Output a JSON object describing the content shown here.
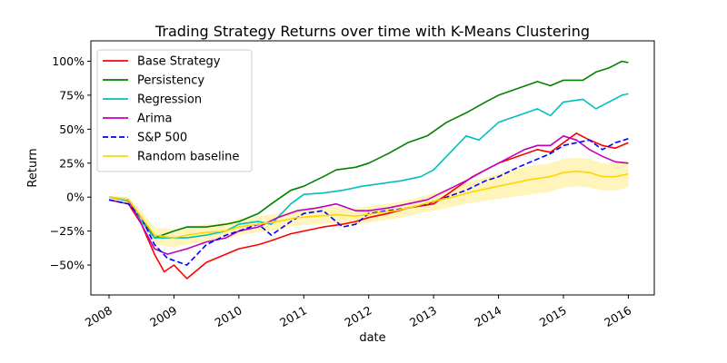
{
  "chart_data": {
    "type": "line",
    "title": "Trading Strategy Returns over time with K-Means Clustering",
    "xlabel": "date",
    "ylabel": "Return",
    "xlim": [
      2007.72,
      2016.4
    ],
    "ylim": [
      -0.72,
      1.15
    ],
    "x_ticks": [
      {
        "value": 2008,
        "label": "2008"
      },
      {
        "value": 2009,
        "label": "2009"
      },
      {
        "value": 2010,
        "label": "2010"
      },
      {
        "value": 2011,
        "label": "2011"
      },
      {
        "value": 2012,
        "label": "2012"
      },
      {
        "value": 2013,
        "label": "2013"
      },
      {
        "value": 2014,
        "label": "2014"
      },
      {
        "value": 2015,
        "label": "2015"
      },
      {
        "value": 2016,
        "label": "2016"
      }
    ],
    "y_ticks": [
      {
        "value": -0.5,
        "label": "−50%"
      },
      {
        "value": -0.25,
        "label": "−25%"
      },
      {
        "value": 0,
        "label": "0%"
      },
      {
        "value": 0.25,
        "label": "25%"
      },
      {
        "value": 0.5,
        "label": "50%"
      },
      {
        "value": 0.75,
        "label": "75%"
      },
      {
        "value": 1.0,
        "label": "100%"
      }
    ],
    "grid": false,
    "legend_position": "top-left",
    "series": [
      {
        "name": "Base Strategy",
        "color": "#ff0000",
        "dash": "solid",
        "x": [
          2008.0,
          2008.3,
          2008.5,
          2008.7,
          2008.85,
          2009.0,
          2009.2,
          2009.5,
          2009.8,
          2010.0,
          2010.3,
          2010.5,
          2010.8,
          2011.0,
          2011.3,
          2011.6,
          2011.8,
          2012.0,
          2012.3,
          2012.6,
          2013.0,
          2013.3,
          2013.6,
          2013.8,
          2014.0,
          2014.3,
          2014.6,
          2014.8,
          2015.0,
          2015.2,
          2015.4,
          2015.6,
          2015.8,
          2016.0
        ],
        "y": [
          -0.02,
          -0.05,
          -0.2,
          -0.42,
          -0.55,
          -0.5,
          -0.6,
          -0.48,
          -0.42,
          -0.38,
          -0.35,
          -0.32,
          -0.27,
          -0.25,
          -0.22,
          -0.2,
          -0.18,
          -0.15,
          -0.12,
          -0.08,
          -0.05,
          0.05,
          0.15,
          0.2,
          0.25,
          0.3,
          0.35,
          0.33,
          0.4,
          0.47,
          0.42,
          0.38,
          0.36,
          0.4
        ]
      },
      {
        "name": "Persistency",
        "color": "#008000",
        "dash": "solid",
        "x": [
          2008.0,
          2008.3,
          2008.5,
          2008.7,
          2009.0,
          2009.2,
          2009.5,
          2009.8,
          2010.0,
          2010.3,
          2010.5,
          2010.8,
          2011.0,
          2011.3,
          2011.5,
          2011.8,
          2012.0,
          2012.3,
          2012.6,
          2012.9,
          2013.2,
          2013.5,
          2013.8,
          2014.0,
          2014.3,
          2014.6,
          2014.8,
          2015.0,
          2015.3,
          2015.5,
          2015.7,
          2015.9,
          2016.0
        ],
        "y": [
          0.0,
          -0.02,
          -0.15,
          -0.3,
          -0.25,
          -0.22,
          -0.22,
          -0.2,
          -0.18,
          -0.12,
          -0.05,
          0.05,
          0.08,
          0.15,
          0.2,
          0.22,
          0.25,
          0.32,
          0.4,
          0.45,
          0.55,
          0.62,
          0.7,
          0.75,
          0.8,
          0.85,
          0.82,
          0.86,
          0.86,
          0.92,
          0.95,
          1.0,
          0.99
        ]
      },
      {
        "name": "Regression",
        "color": "#00bfbf",
        "dash": "solid",
        "x": [
          2008.0,
          2008.3,
          2008.5,
          2008.7,
          2009.0,
          2009.2,
          2009.5,
          2009.8,
          2010.0,
          2010.3,
          2010.5,
          2010.8,
          2011.0,
          2011.3,
          2011.6,
          2011.9,
          2012.2,
          2012.5,
          2012.8,
          2013.0,
          2013.3,
          2013.5,
          2013.7,
          2014.0,
          2014.3,
          2014.6,
          2014.8,
          2015.0,
          2015.3,
          2015.5,
          2015.7,
          2015.9,
          2016.0
        ],
        "y": [
          0.0,
          -0.03,
          -0.18,
          -0.3,
          -0.3,
          -0.3,
          -0.28,
          -0.25,
          -0.2,
          -0.18,
          -0.2,
          -0.05,
          0.02,
          0.03,
          0.05,
          0.08,
          0.1,
          0.12,
          0.15,
          0.2,
          0.35,
          0.45,
          0.42,
          0.55,
          0.6,
          0.65,
          0.6,
          0.7,
          0.72,
          0.65,
          0.7,
          0.75,
          0.76
        ]
      },
      {
        "name": "Arima",
        "color": "#bf00bf",
        "dash": "solid",
        "x": [
          2008.0,
          2008.3,
          2008.5,
          2008.7,
          2008.9,
          2009.2,
          2009.5,
          2009.8,
          2010.0,
          2010.3,
          2010.6,
          2010.9,
          2011.2,
          2011.5,
          2011.8,
          2012.0,
          2012.3,
          2012.6,
          2012.9,
          2013.2,
          2013.5,
          2013.8,
          2014.0,
          2014.2,
          2014.4,
          2014.6,
          2014.8,
          2015.0,
          2015.2,
          2015.4,
          2015.6,
          2015.8,
          2016.0
        ],
        "y": [
          0.0,
          -0.02,
          -0.2,
          -0.38,
          -0.42,
          -0.38,
          -0.33,
          -0.3,
          -0.25,
          -0.22,
          -0.15,
          -0.1,
          -0.08,
          -0.05,
          -0.1,
          -0.1,
          -0.08,
          -0.05,
          -0.02,
          0.05,
          0.12,
          0.2,
          0.25,
          0.3,
          0.35,
          0.38,
          0.38,
          0.45,
          0.42,
          0.35,
          0.3,
          0.26,
          0.25
        ]
      },
      {
        "name": "S&P 500",
        "color": "#0000ff",
        "dash": "dashed",
        "x": [
          2008.0,
          2008.3,
          2008.5,
          2008.7,
          2008.9,
          2009.2,
          2009.5,
          2009.8,
          2010.0,
          2010.3,
          2010.5,
          2010.8,
          2011.0,
          2011.3,
          2011.6,
          2011.8,
          2012.0,
          2012.3,
          2012.6,
          2012.9,
          2013.2,
          2013.5,
          2013.8,
          2014.0,
          2014.3,
          2014.6,
          2014.8,
          2015.0,
          2015.2,
          2015.4,
          2015.6,
          2015.8,
          2016.0
        ],
        "y": [
          -0.02,
          -0.05,
          -0.15,
          -0.35,
          -0.45,
          -0.5,
          -0.35,
          -0.28,
          -0.25,
          -0.2,
          -0.28,
          -0.18,
          -0.12,
          -0.1,
          -0.22,
          -0.2,
          -0.12,
          -0.1,
          -0.08,
          -0.05,
          0.0,
          0.05,
          0.12,
          0.15,
          0.22,
          0.28,
          0.32,
          0.38,
          0.4,
          0.42,
          0.35,
          0.4,
          0.43
        ]
      },
      {
        "name": "Random baseline",
        "color": "#ffd700",
        "dash": "solid",
        "band": true,
        "band_color": "#fff3b0",
        "x": [
          2008.0,
          2008.3,
          2008.5,
          2008.7,
          2009.0,
          2009.2,
          2009.5,
          2009.8,
          2010.0,
          2010.3,
          2010.6,
          2010.9,
          2011.2,
          2011.5,
          2011.8,
          2012.1,
          2012.4,
          2012.7,
          2013.0,
          2013.3,
          2013.6,
          2013.9,
          2014.2,
          2014.5,
          2014.8,
          2015.0,
          2015.2,
          2015.4,
          2015.6,
          2015.8,
          2016.0
        ],
        "y": [
          0.0,
          -0.02,
          -0.15,
          -0.28,
          -0.3,
          -0.28,
          -0.26,
          -0.25,
          -0.22,
          -0.2,
          -0.18,
          -0.15,
          -0.14,
          -0.13,
          -0.14,
          -0.12,
          -0.1,
          -0.07,
          -0.03,
          0.0,
          0.04,
          0.07,
          0.1,
          0.13,
          0.15,
          0.18,
          0.19,
          0.18,
          0.15,
          0.15,
          0.17
        ],
        "y_low": [
          0.0,
          -0.04,
          -0.2,
          -0.35,
          -0.37,
          -0.35,
          -0.33,
          -0.31,
          -0.28,
          -0.26,
          -0.24,
          -0.21,
          -0.2,
          -0.19,
          -0.2,
          -0.18,
          -0.16,
          -0.13,
          -0.1,
          -0.07,
          -0.04,
          -0.02,
          0.0,
          0.02,
          0.04,
          0.07,
          0.08,
          0.07,
          0.05,
          0.05,
          0.07
        ],
        "y_high": [
          0.01,
          0.0,
          -0.1,
          -0.22,
          -0.24,
          -0.22,
          -0.2,
          -0.19,
          -0.16,
          -0.14,
          -0.12,
          -0.09,
          -0.08,
          -0.07,
          -0.08,
          -0.06,
          -0.04,
          -0.01,
          0.03,
          0.07,
          0.12,
          0.16,
          0.2,
          0.23,
          0.25,
          0.28,
          0.29,
          0.28,
          0.25,
          0.25,
          0.27
        ]
      }
    ]
  }
}
